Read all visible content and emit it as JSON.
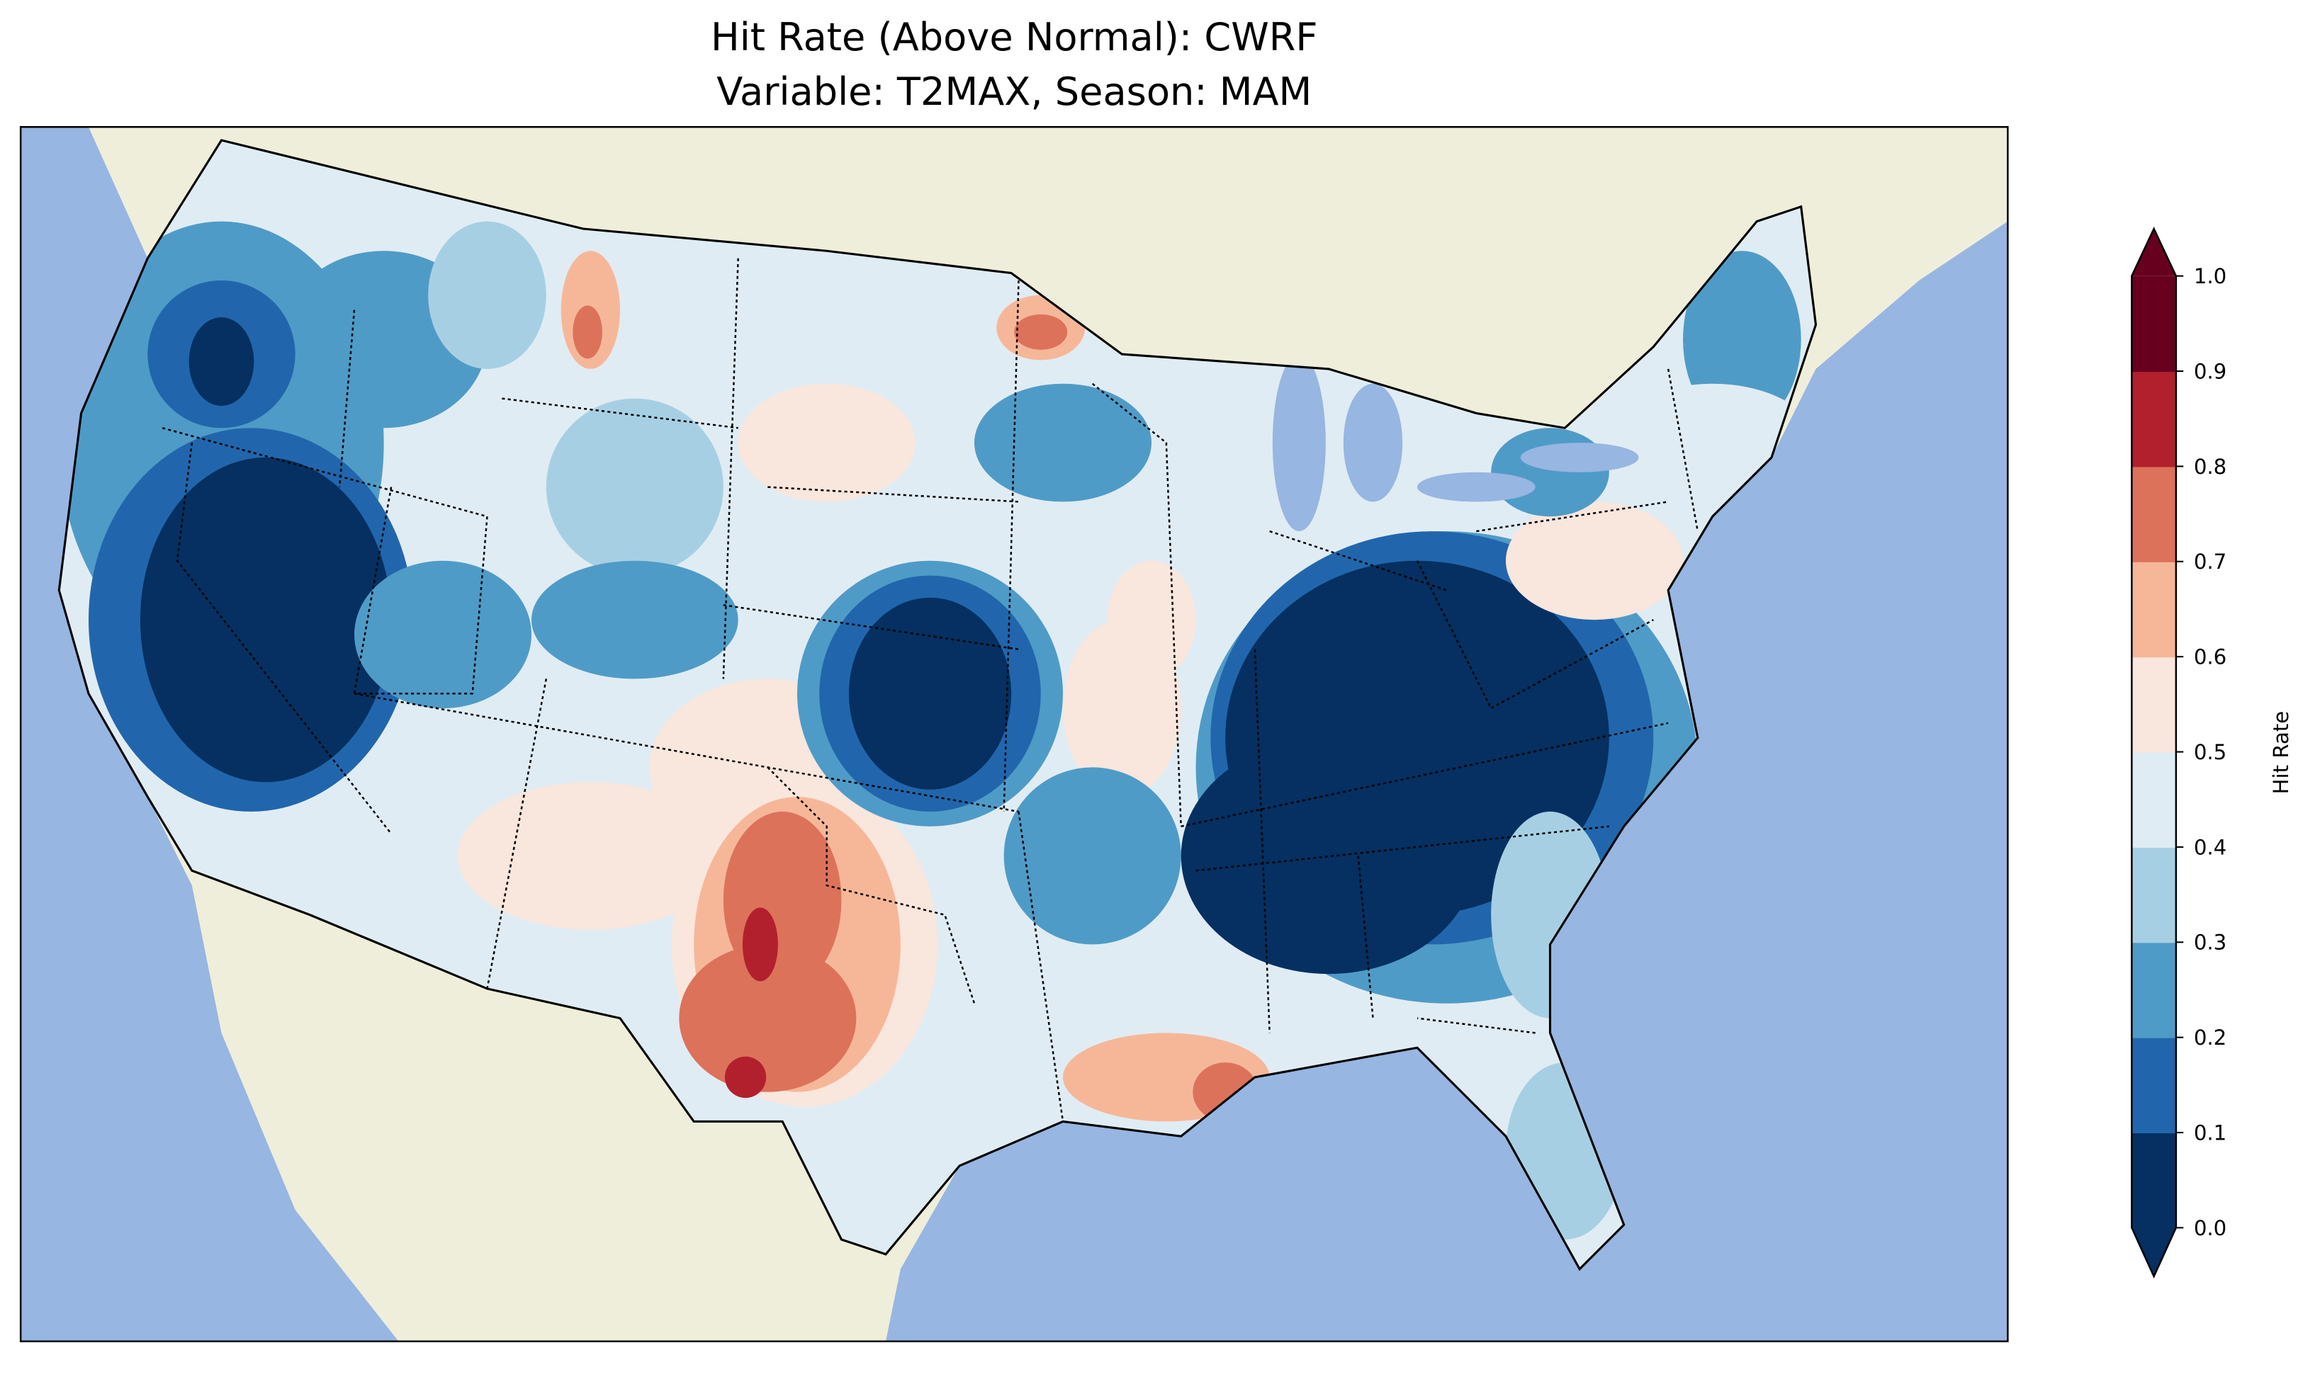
{
  "title": {
    "line1": "Hit Rate (Above Normal): CWRF",
    "line2": "Variable: T2MAX, Season: MAM"
  },
  "map": {
    "ocean_color": "#97b6e1",
    "land_color": "#efeedb",
    "region": "Contiguous United States",
    "extend": "both"
  },
  "colorbar": {
    "label": "Hit Rate",
    "ticks": [
      "0.0",
      "0.1",
      "0.2",
      "0.3",
      "0.4",
      "0.5",
      "0.6",
      "0.7",
      "0.8",
      "0.9",
      "1.0"
    ],
    "colors": [
      "#053061",
      "#2166ac",
      "#4f9bc7",
      "#a7cfe4",
      "#e0ecf3",
      "#f9e6dd",
      "#f6b799",
      "#dd725b",
      "#b2202e",
      "#67001f"
    ]
  }
}
